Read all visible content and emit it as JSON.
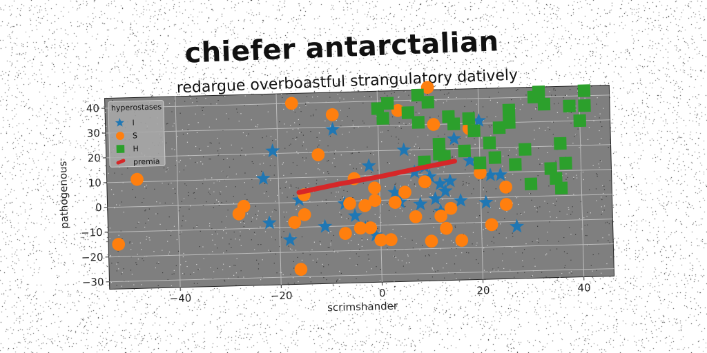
{
  "chart_data": {
    "type": "scatter",
    "title": "chiefer antarctalian",
    "subtitle": "redargue overboastful strangulatory datively",
    "xlabel": "scrimshander",
    "ylabel": "pathogenous",
    "xlim": [
      -54,
      46
    ],
    "ylim": [
      -33,
      44
    ],
    "xticks": [
      -40,
      -20,
      0,
      20,
      40
    ],
    "yticks": [
      -30,
      -20,
      -10,
      0,
      10,
      20,
      30,
      40
    ],
    "grid": true,
    "legend": {
      "title": "hyperostases",
      "position": "top-left"
    },
    "series": [
      {
        "name": "I",
        "marker": "star",
        "color": "#1f77b4",
        "points": [
          [
            -21,
            21
          ],
          [
            -9,
            29
          ],
          [
            -23,
            10
          ],
          [
            -16,
            1
          ],
          [
            -22,
            -8
          ],
          [
            -18,
            -15
          ],
          [
            -11,
            -10
          ],
          [
            -7,
            -1
          ],
          [
            -5,
            -6
          ],
          [
            -3,
            -11
          ],
          [
            -2,
            14
          ],
          [
            -1,
            -14
          ],
          [
            3,
            3
          ],
          [
            4,
            -1
          ],
          [
            5,
            20
          ],
          [
            7,
            11
          ],
          [
            9,
            13
          ],
          [
            10,
            9
          ],
          [
            11,
            0
          ],
          [
            12,
            6
          ],
          [
            12,
            -5
          ],
          [
            13,
            3
          ],
          [
            14,
            7
          ],
          [
            15,
            24
          ],
          [
            16,
            -1
          ],
          [
            18,
            15
          ],
          [
            20,
            31
          ],
          [
            21,
            -2
          ],
          [
            22,
            9
          ],
          [
            27,
            -12
          ],
          [
            24,
            9
          ],
          [
            8,
            -2
          ]
        ]
      },
      {
        "name": "S",
        "marker": "circle",
        "color": "#ff7f0e",
        "points": [
          [
            -17,
            40
          ],
          [
            -48,
            11
          ],
          [
            -52,
            -15
          ],
          [
            -28,
            -4
          ],
          [
            -27,
            -1
          ],
          [
            -16,
            -27
          ],
          [
            -17,
            -8
          ],
          [
            -15,
            -5
          ],
          [
            -15,
            3
          ],
          [
            -12,
            19
          ],
          [
            -9,
            35
          ],
          [
            -7,
            -13
          ],
          [
            -6,
            -1
          ],
          [
            -5,
            9
          ],
          [
            -4,
            -11
          ],
          [
            -3,
            -2
          ],
          [
            -2,
            -11
          ],
          [
            -1,
            0
          ],
          [
            0,
            -16
          ],
          [
            2,
            -16
          ],
          [
            3,
            -1
          ],
          [
            5,
            3
          ],
          [
            7,
            -7
          ],
          [
            9,
            7
          ],
          [
            10,
            -17
          ],
          [
            11,
            30
          ],
          [
            12,
            -7
          ],
          [
            13,
            -12
          ],
          [
            14,
            -4
          ],
          [
            16,
            -17
          ],
          [
            18,
            28
          ],
          [
            20,
            10
          ],
          [
            22,
            -11
          ],
          [
            25,
            4
          ],
          [
            25,
            -3
          ],
          [
            10,
            45
          ],
          [
            4,
            36
          ],
          [
            -1,
            5
          ]
        ]
      },
      {
        "name": "H",
        "marker": "square",
        "color": "#2ca02c",
        "points": [
          [
            0,
            37
          ],
          [
            2,
            39
          ],
          [
            1,
            33
          ],
          [
            6,
            35
          ],
          [
            8,
            31
          ],
          [
            8,
            42
          ],
          [
            10,
            39
          ],
          [
            12,
            22
          ],
          [
            12,
            18
          ],
          [
            13,
            17
          ],
          [
            14,
            33
          ],
          [
            15,
            30
          ],
          [
            17,
            19
          ],
          [
            18,
            32
          ],
          [
            19,
            27
          ],
          [
            20,
            14
          ],
          [
            22,
            22
          ],
          [
            23,
            16
          ],
          [
            24,
            28
          ],
          [
            26,
            35
          ],
          [
            26,
            30
          ],
          [
            27,
            13
          ],
          [
            29,
            19
          ],
          [
            31,
            40
          ],
          [
            32,
            42
          ],
          [
            33,
            37
          ],
          [
            34,
            11
          ],
          [
            35,
            7
          ],
          [
            36,
            3
          ],
          [
            36,
            21
          ],
          [
            37,
            13
          ],
          [
            38,
            36
          ],
          [
            40,
            30
          ],
          [
            41,
            42
          ],
          [
            41,
            36
          ],
          [
            30,
            5
          ],
          [
            9,
            15
          ]
        ]
      },
      {
        "name": "premia",
        "marker": "line",
        "color": "#d62728",
        "points": [
          [
            -16,
            4
          ],
          [
            -8,
            7
          ],
          [
            0,
            9.5
          ],
          [
            8,
            12.5
          ],
          [
            15,
            15
          ]
        ]
      }
    ]
  }
}
